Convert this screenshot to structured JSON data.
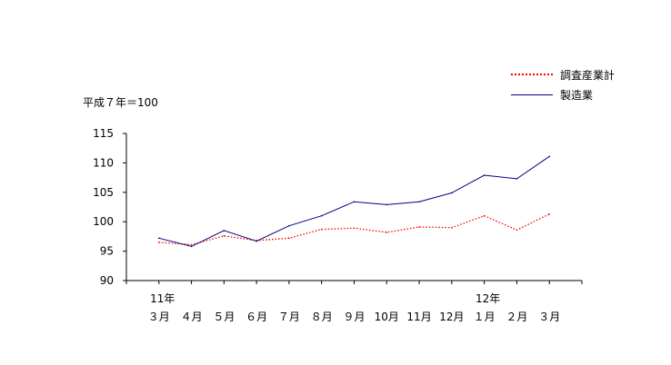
{
  "unit_label": "平成７年＝100",
  "legend": [
    {
      "label": "調査産業計",
      "color": "#ff0000",
      "style": "dotted"
    },
    {
      "label": "製造業",
      "color": "#000080",
      "style": "solid"
    }
  ],
  "chart_data": {
    "type": "line",
    "ylim": [
      90,
      115
    ],
    "yticks": [
      90,
      95,
      100,
      105,
      110,
      115
    ],
    "year_labels": [
      {
        "index": 0,
        "label": "11年"
      },
      {
        "index": 10,
        "label": "12年"
      }
    ],
    "categories": [
      "３月",
      "４月",
      "５月",
      "６月",
      "７月",
      "８月",
      "９月",
      "10月",
      "11月",
      "12月",
      "１月",
      "２月",
      "３月"
    ],
    "series": [
      {
        "name": "調査産業計",
        "color": "#ff0000",
        "style": "dotted",
        "values": [
          96.5,
          96.1,
          97.6,
          96.8,
          97.2,
          98.7,
          98.9,
          98.2,
          99.1,
          99.0,
          101.0,
          98.6,
          101.3
        ]
      },
      {
        "name": "製造業",
        "color": "#000080",
        "style": "solid",
        "values": [
          97.2,
          95.8,
          98.5,
          96.7,
          99.3,
          101.0,
          103.4,
          102.9,
          103.4,
          104.9,
          107.9,
          107.3,
          111.1
        ]
      }
    ],
    "grid": false,
    "legend_position": "top-right"
  }
}
